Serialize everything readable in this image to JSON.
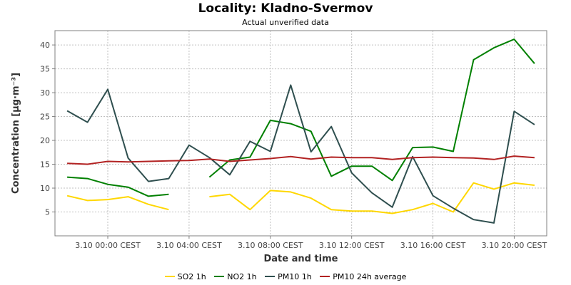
{
  "header": {
    "title": "Locality: Kladno-Svermov",
    "subtitle": "Actual unverified data"
  },
  "chart_data": {
    "type": "line",
    "title": "Locality: Kladno-Svermov",
    "subtitle": "Actual unverified data",
    "xlabel": "Date and time",
    "ylabel": "Concentration [µg·m⁻³]",
    "x": [
      "2.10 22:00",
      "2.10 23:00",
      "3.10 00:00",
      "3.10 01:00",
      "3.10 02:00",
      "3.10 03:00",
      "3.10 04:00",
      "3.10 05:00",
      "3.10 06:00",
      "3.10 07:00",
      "3.10 08:00",
      "3.10 09:00",
      "3.10 10:00",
      "3.10 11:00",
      "3.10 12:00",
      "3.10 13:00",
      "3.10 14:00",
      "3.10 15:00",
      "3.10 16:00",
      "3.10 17:00",
      "3.10 18:00",
      "3.10 19:00",
      "3.10 20:00",
      "3.10 21:00"
    ],
    "x_ticks": [
      "3.10 00:00 CEST",
      "3.10 04:00 CEST",
      "3.10 08:00 CEST",
      "3.10 12:00 CEST",
      "3.10 16:00 CEST",
      "3.10 20:00 CEST"
    ],
    "x_tick_hours": [
      0,
      4,
      8,
      12,
      16,
      20
    ],
    "x_range_hours": [
      -2.6,
      21.6
    ],
    "y_ticks": [
      5,
      10,
      15,
      20,
      25,
      30,
      35,
      40
    ],
    "ylim": [
      0,
      43
    ],
    "grid": true,
    "legend_position": "bottom",
    "series": [
      {
        "name": "SO2 1h",
        "color": "#FFD700",
        "values": [
          8.4,
          7.4,
          7.6,
          8.2,
          6.6,
          5.5,
          null,
          8.2,
          8.7,
          5.5,
          9.5,
          9.2,
          7.9,
          5.5,
          5.2,
          5.2,
          4.7,
          5.5,
          6.8,
          5.0,
          11.1,
          9.8,
          11.1,
          10.6
        ]
      },
      {
        "name": "NO2 1h",
        "color": "#008000",
        "values": [
          12.3,
          12.0,
          10.8,
          10.2,
          8.3,
          8.7,
          null,
          12.3,
          15.9,
          16.5,
          24.2,
          23.5,
          21.9,
          12.5,
          14.6,
          14.6,
          11.6,
          18.5,
          18.6,
          17.7,
          36.9,
          39.4,
          41.2,
          36.1
        ]
      },
      {
        "name": "PM10 1h",
        "color": "#2F4F4F",
        "values": [
          26.2,
          23.8,
          30.7,
          16.3,
          11.4,
          12.0,
          19.0,
          16.4,
          12.8,
          19.8,
          17.7,
          31.6,
          17.6,
          22.9,
          13.2,
          9.0,
          6.0,
          16.6,
          8.4,
          5.8,
          3.4,
          2.7,
          26.1,
          23.3
        ]
      },
      {
        "name": "PM10 24h average",
        "color": "#B22222",
        "values": [
          15.2,
          15.0,
          15.6,
          15.5,
          15.6,
          15.7,
          15.8,
          16.1,
          15.6,
          15.9,
          16.2,
          16.6,
          16.1,
          16.5,
          16.4,
          16.4,
          16.0,
          16.4,
          16.5,
          16.4,
          16.3,
          16.0,
          16.7,
          16.4
        ]
      }
    ]
  }
}
